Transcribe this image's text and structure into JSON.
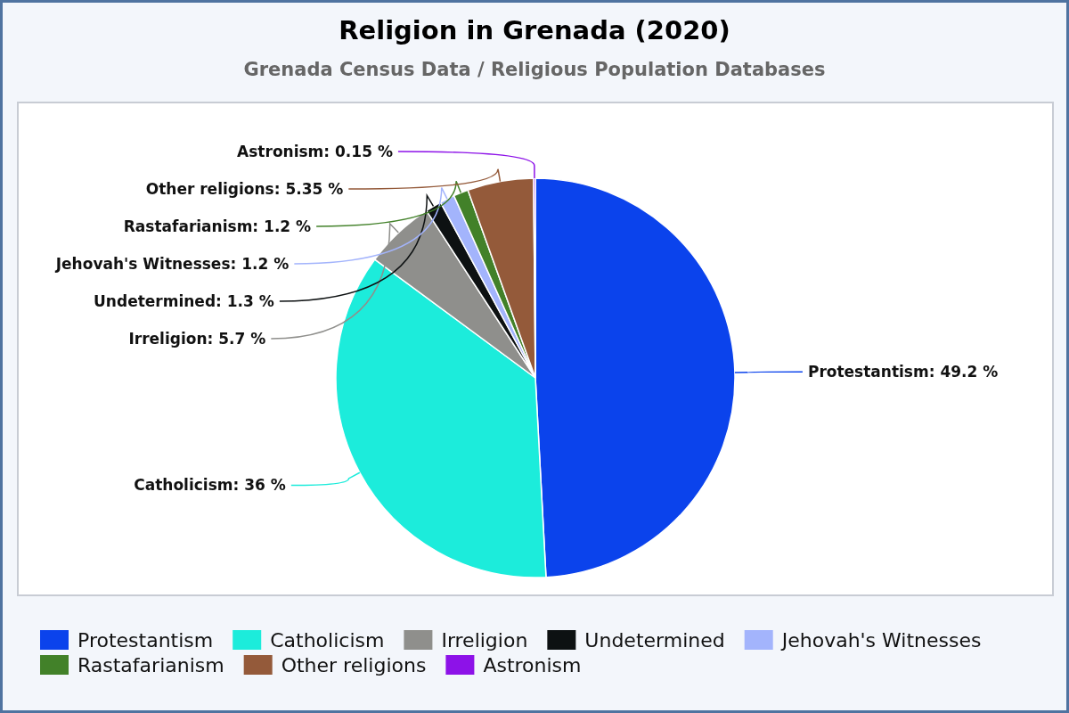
{
  "chart_data": {
    "type": "pie",
    "title": "Religion in Grenada (2020)",
    "subtitle": "Grenada Census Data / Religious Population Databases",
    "categories": [
      "Protestantism",
      "Catholicism",
      "Irreligion",
      "Undetermined",
      "Jehovah's Witnesses",
      "Rastafarianism",
      "Other religions",
      "Astronism"
    ],
    "values": [
      49.2,
      36,
      5.7,
      1.3,
      1.2,
      1.2,
      5.35,
      0.15
    ],
    "colors": [
      "#0b43ec",
      "#1cecdb",
      "#8f8f8c",
      "#0d1112",
      "#a3b4fc",
      "#428129",
      "#945a3a",
      "#8d12e8"
    ],
    "value_labels": [
      "Protestantism: 49.2 %",
      "Catholicism: 36 %",
      "Irreligion: 5.7 %",
      "Undetermined: 1.3 %",
      "Jehovah's Witnesses: 1.2 %",
      "Rastafarianism: 1.2 %",
      "Other religions: 5.35 %",
      "Astronism: 0.15 %"
    ],
    "legend": "bottom"
  }
}
